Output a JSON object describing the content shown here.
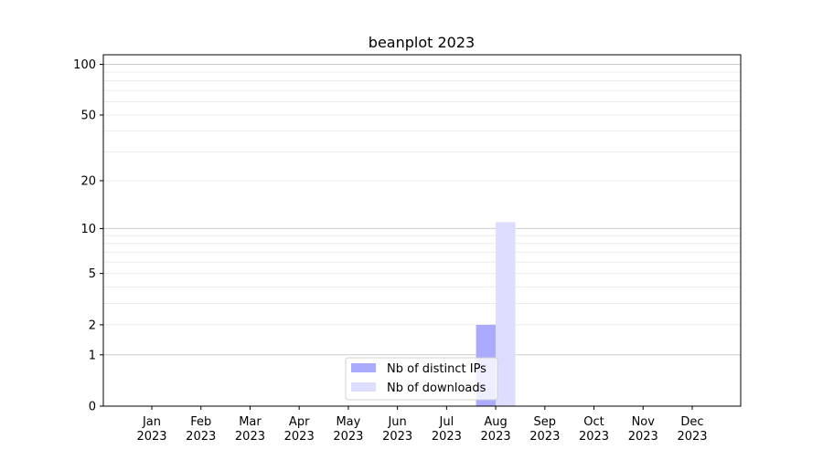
{
  "chart_data": {
    "type": "bar",
    "title": "beanplot 2023",
    "xlabel": "",
    "ylabel": "",
    "yscale": "log(1+y)",
    "ylim": [
      0,
      114
    ],
    "yticks": [
      0,
      1,
      2,
      5,
      10,
      20,
      50,
      100
    ],
    "grid": true,
    "legend_position": "lower-center",
    "categories": [
      [
        "Jan",
        "2023"
      ],
      [
        "Feb",
        "2023"
      ],
      [
        "Mar",
        "2023"
      ],
      [
        "Apr",
        "2023"
      ],
      [
        "May",
        "2023"
      ],
      [
        "Jun",
        "2023"
      ],
      [
        "Jul",
        "2023"
      ],
      [
        "Aug",
        "2023"
      ],
      [
        "Sep",
        "2023"
      ],
      [
        "Oct",
        "2023"
      ],
      [
        "Nov",
        "2023"
      ],
      [
        "Dec",
        "2023"
      ]
    ],
    "series": [
      {
        "name": "Nb of distinct IPs",
        "color": "#aaaaff",
        "values": [
          0,
          0,
          0,
          0,
          0,
          0,
          0,
          2,
          0,
          0,
          0,
          0
        ]
      },
      {
        "name": "Nb of downloads",
        "color": "#ddddff",
        "values": [
          0,
          0,
          0,
          0,
          0,
          0,
          0,
          11,
          0,
          0,
          0,
          0
        ]
      }
    ]
  }
}
